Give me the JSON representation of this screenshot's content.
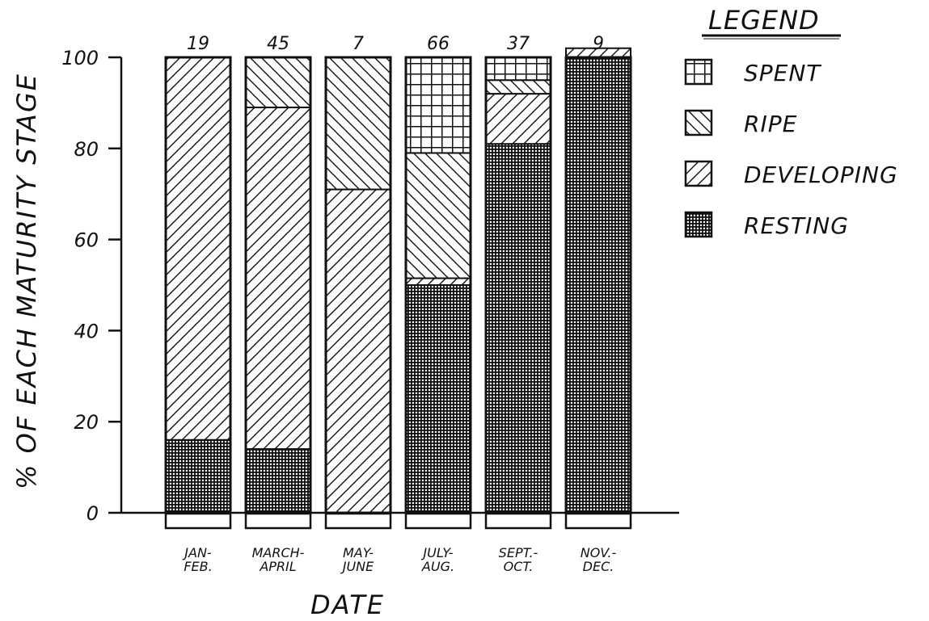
{
  "chart_data": {
    "type": "bar",
    "stacked": true,
    "title": "",
    "xlabel": "DATE",
    "ylabel": "% OF EACH MATURITY STAGE",
    "ylim": [
      0,
      100
    ],
    "yticks": [
      "0",
      "20",
      "40",
      "60",
      "80",
      "100"
    ],
    "categories": [
      [
        "JAN-",
        "FEB."
      ],
      [
        "MARCH-",
        "APRIL"
      ],
      [
        "MAY-",
        "JUNE"
      ],
      [
        "JULY-",
        "AUG."
      ],
      [
        "SEPT.-",
        "OCT."
      ],
      [
        "NOV.-",
        "DEC."
      ]
    ],
    "sample_sizes": [
      "19",
      "45",
      "7",
      "66",
      "37",
      "9"
    ],
    "series": [
      {
        "name": "RESTING",
        "pattern": "dense-grid",
        "values": [
          16,
          14,
          0,
          50,
          81,
          100
        ]
      },
      {
        "name": "DEVELOPING",
        "pattern": "forward-hatch",
        "values": [
          84,
          75,
          71,
          1.5,
          11,
          2
        ]
      },
      {
        "name": "RIPE",
        "pattern": "back-hatch",
        "values": [
          0,
          11,
          29,
          27.5,
          3,
          0
        ]
      },
      {
        "name": "SPENT",
        "pattern": "coarse-grid",
        "values": [
          0,
          0,
          0,
          21,
          5,
          0
        ]
      }
    ],
    "legend": {
      "title": "LEGEND",
      "position": "top-right",
      "order": [
        "SPENT",
        "RIPE",
        "DEVELOPING",
        "RESTING"
      ]
    },
    "grid": false
  }
}
